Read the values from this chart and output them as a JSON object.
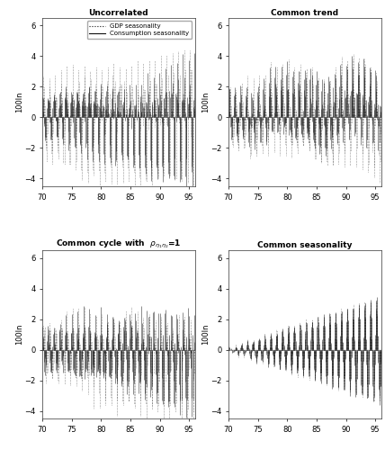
{
  "titles": [
    "Uncorrelated",
    "Common trend",
    "Common cycle with  $\\rho_{\\eta_1\\eta_2}$=1",
    "Common seasonality"
  ],
  "ylabel": "100ln",
  "xlim": [
    70,
    96
  ],
  "ylim": [
    -4.5,
    6.5
  ],
  "xticks": [
    70,
    75,
    80,
    85,
    90,
    95
  ],
  "yticks": [
    -4,
    -2,
    0,
    2,
    4,
    6
  ],
  "legend_labels": [
    "GDP seasonality",
    "Consumption seasonality"
  ],
  "n_years": 26,
  "freq": 12,
  "background_color": "#ffffff",
  "line_color": "#111111"
}
